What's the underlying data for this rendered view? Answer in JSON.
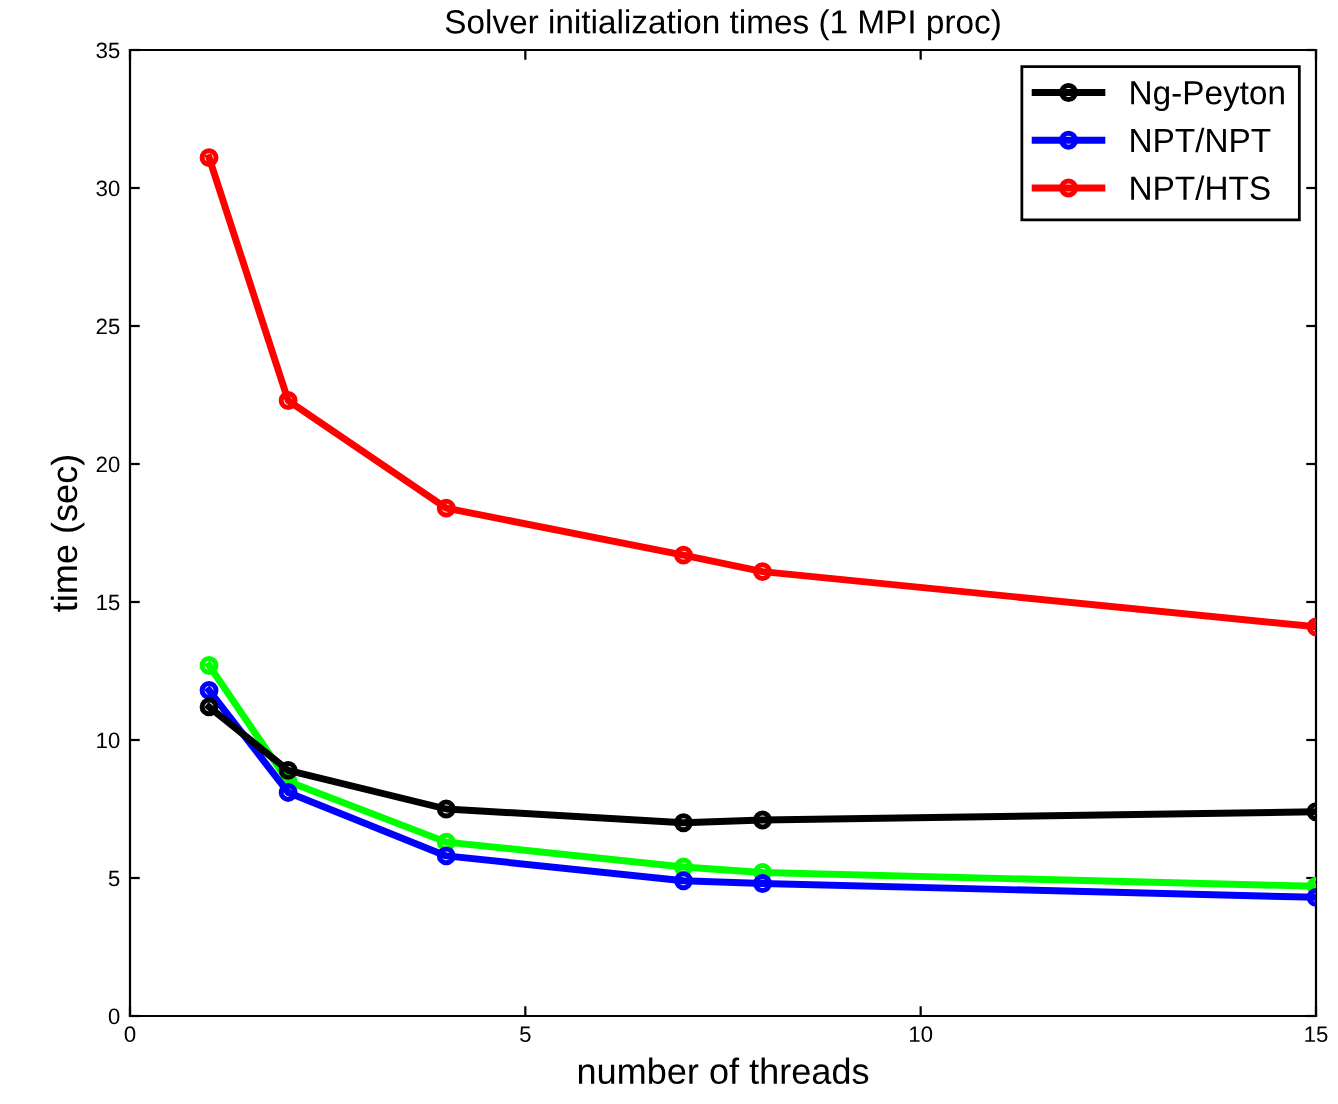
{
  "chart_data": {
    "type": "line",
    "title": "Solver initialization times (1 MPI proc)",
    "xlabel": "number of threads",
    "ylabel": "time (sec)",
    "x": [
      1,
      2,
      4,
      7,
      8,
      15
    ],
    "series": [
      {
        "name": "Ng-Peyton",
        "color": "#000000",
        "values": [
          11.2,
          8.9,
          7.5,
          7.0,
          7.1,
          7.4
        ]
      },
      {
        "name": "NPT/NPT",
        "color": "#0000ff",
        "values": [
          11.8,
          8.1,
          5.8,
          4.9,
          4.8,
          4.3
        ]
      },
      {
        "name": "NPT/HTS",
        "color": "#ff0000",
        "values": [
          31.1,
          22.3,
          18.4,
          16.7,
          16.1,
          14.1
        ]
      },
      {
        "color": "#00ff00",
        "values": [
          12.7,
          8.5,
          6.3,
          5.4,
          5.2,
          4.7
        ]
      }
    ],
    "xlim": [
      0,
      15
    ],
    "xticks": [
      0,
      5,
      10,
      15
    ],
    "ylim": [
      0,
      35
    ],
    "yticks": [
      0,
      5,
      10,
      15,
      20,
      25,
      30,
      35
    ],
    "grid": false,
    "legend": "top right",
    "marker": "circle",
    "line_style": "solid"
  }
}
